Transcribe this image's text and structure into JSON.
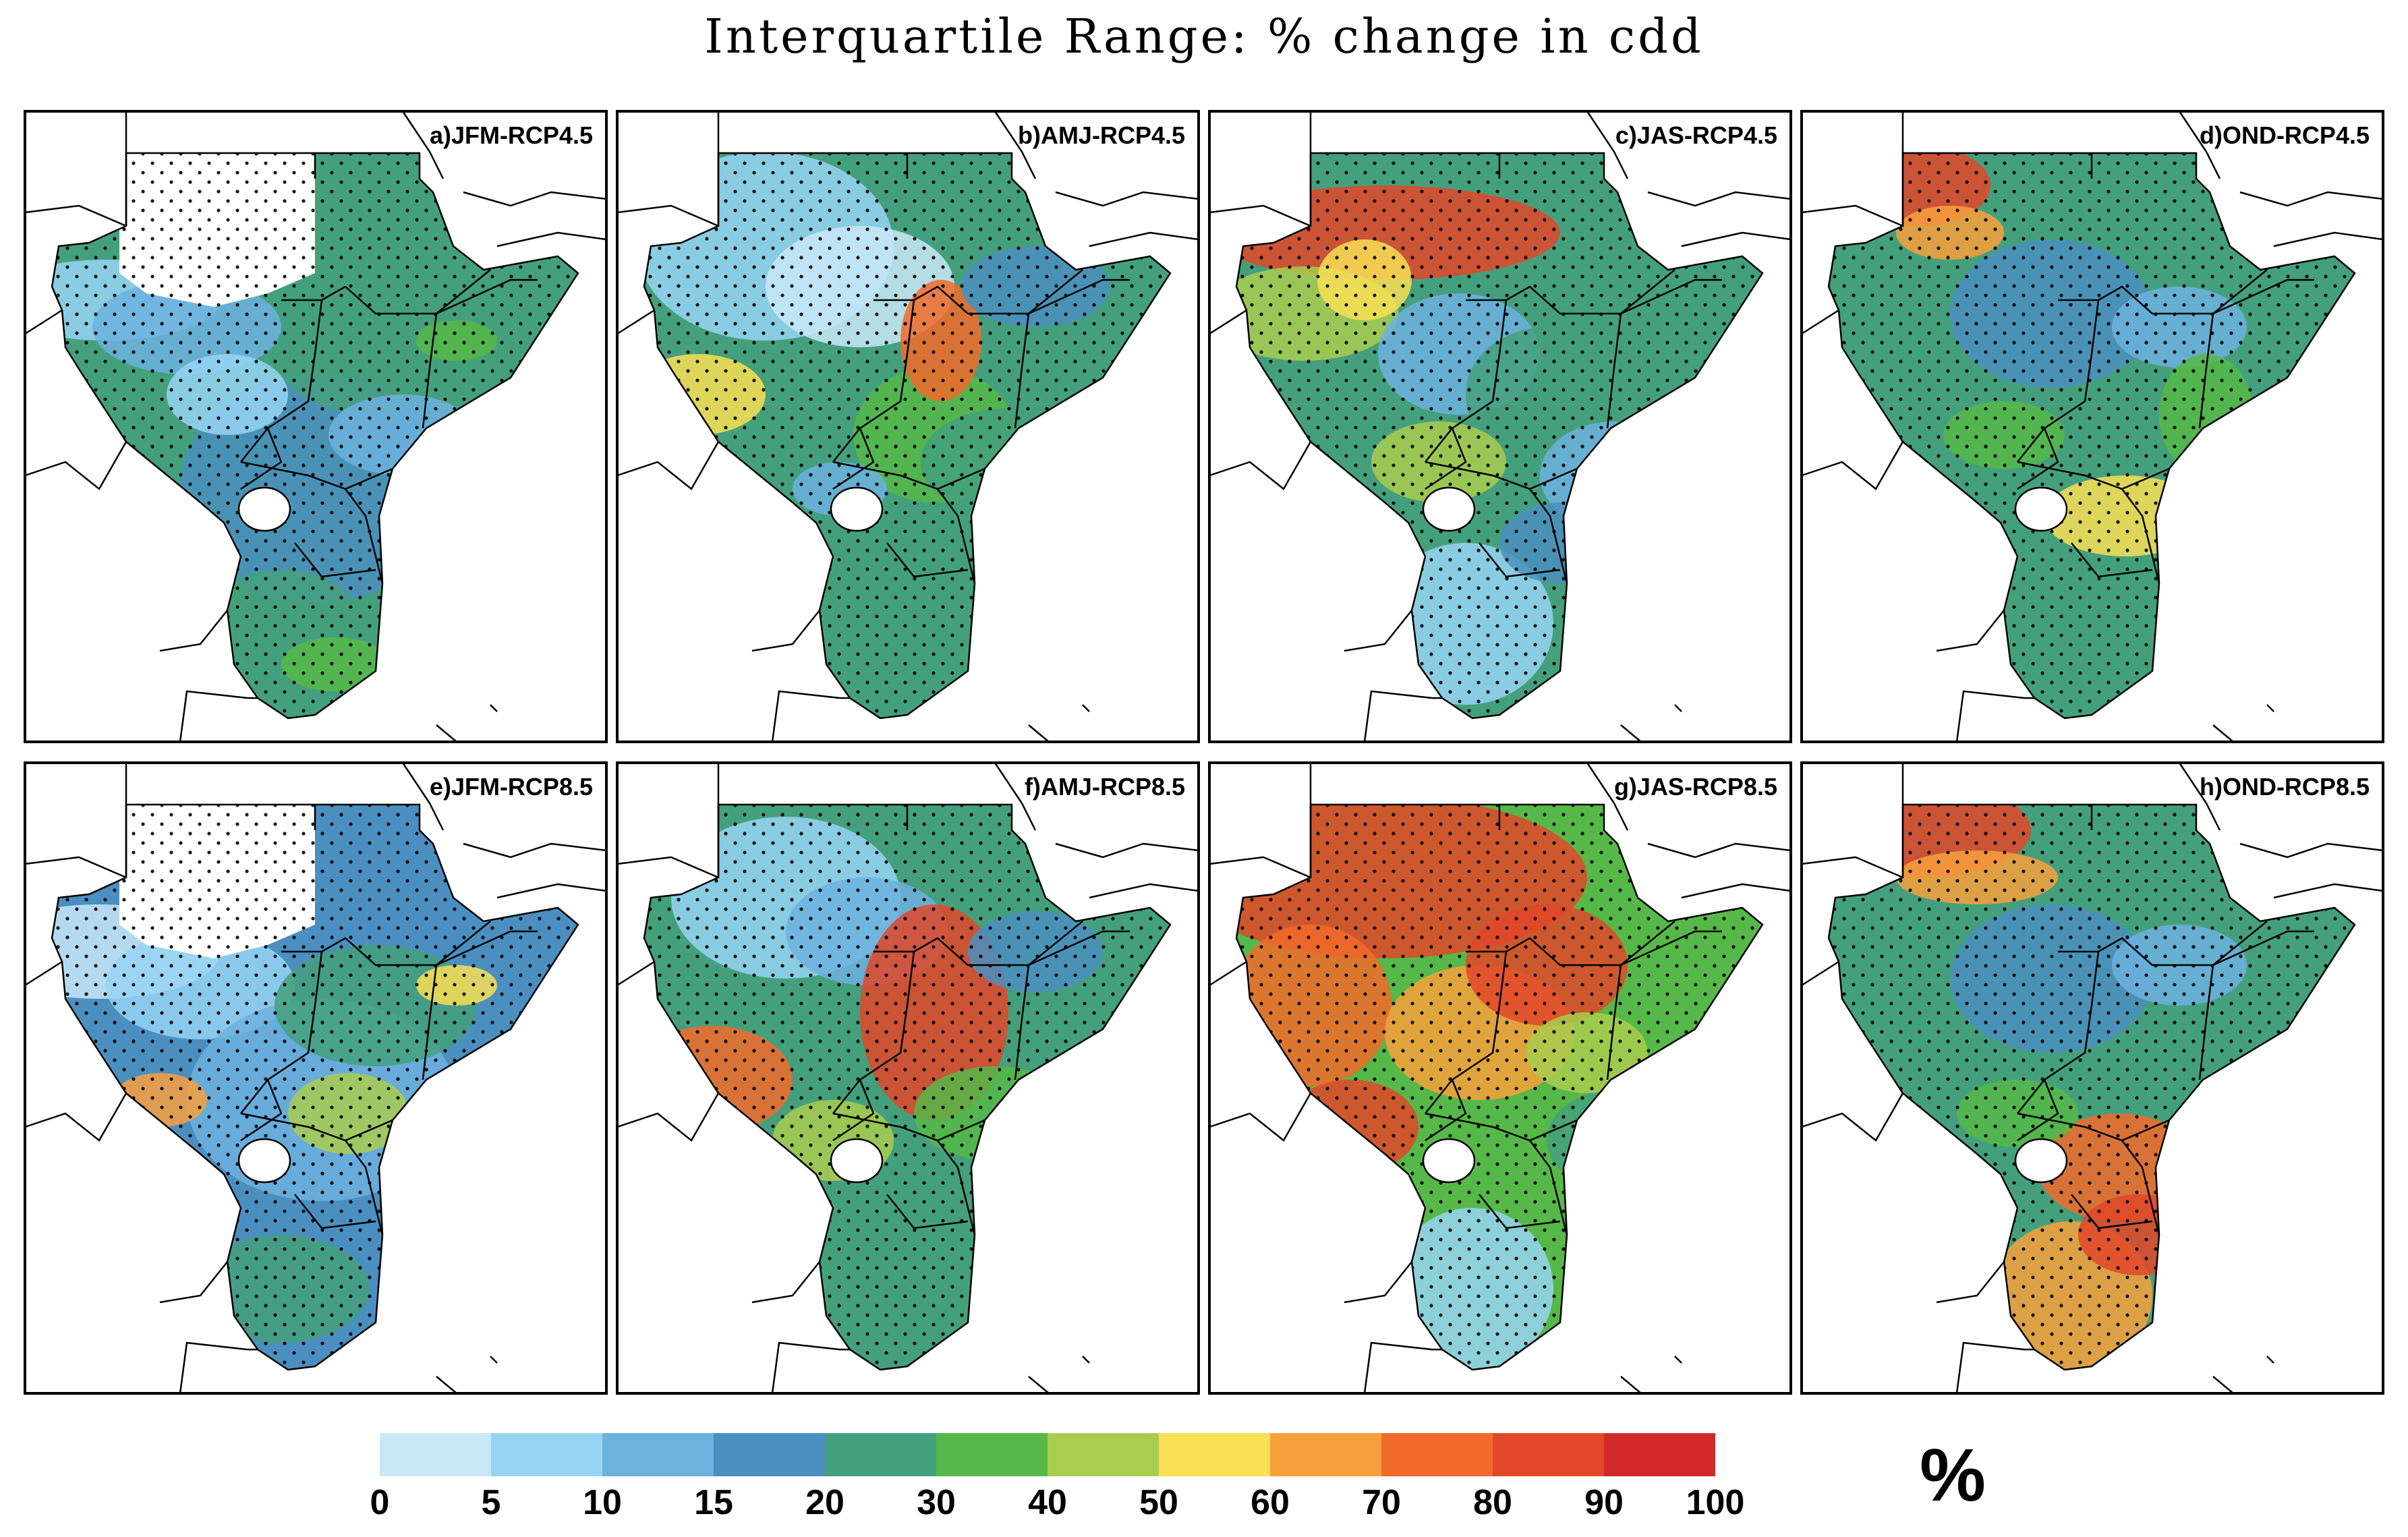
{
  "title": "Interquartile Range: % change in cdd",
  "panels": [
    {
      "label": "a)JFM-RCP4.5",
      "season": "JFM",
      "scenario": "RCP4.5"
    },
    {
      "label": "b)AMJ-RCP4.5",
      "season": "AMJ",
      "scenario": "RCP4.5"
    },
    {
      "label": "c)JAS-RCP4.5",
      "season": "JAS",
      "scenario": "RCP4.5"
    },
    {
      "label": "d)OND-RCP4.5",
      "season": "OND",
      "scenario": "RCP4.5"
    },
    {
      "label": "e)JFM-RCP8.5",
      "season": "JFM",
      "scenario": "RCP8.5"
    },
    {
      "label": "f)AMJ-RCP8.5",
      "season": "AMJ",
      "scenario": "RCP8.5"
    },
    {
      "label": "g)JAS-RCP8.5",
      "season": "JAS",
      "scenario": "RCP8.5"
    },
    {
      "label": "h)OND-RCP8.5",
      "season": "OND",
      "scenario": "RCP8.5"
    }
  ],
  "colorbar": {
    "ticks": [
      "0",
      "5",
      "10",
      "15",
      "20",
      "30",
      "40",
      "50",
      "60",
      "70",
      "80",
      "90",
      "100"
    ],
    "colors": [
      "#c8e8f8",
      "#97d4f3",
      "#6cb2df",
      "#4b8fc0",
      "#44a07c",
      "#56b848",
      "#a9cd4f",
      "#f8df55",
      "#f8a03c",
      "#f26a2c",
      "#e24729",
      "#d22a2a"
    ],
    "unit": "%"
  },
  "chart_data": {
    "type": "heatmap",
    "title": "Interquartile Range: % change in cdd",
    "variable": "cdd",
    "unit": "%",
    "levels": [
      0,
      5,
      10,
      15,
      20,
      30,
      40,
      50,
      60,
      70,
      80,
      90,
      100
    ],
    "panels": [
      "a)JFM-RCP4.5",
      "b)AMJ-RCP4.5",
      "c)JAS-RCP4.5",
      "d)OND-RCP4.5",
      "e)JFM-RCP8.5",
      "f)AMJ-RCP8.5",
      "g)JAS-RCP8.5",
      "h)OND-RCP8.5"
    ]
  }
}
